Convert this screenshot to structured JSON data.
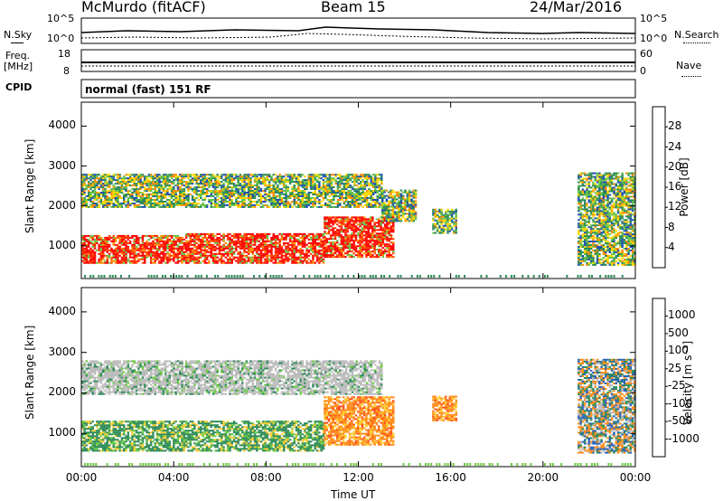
{
  "header": {
    "station": "McMurdo (fitACF)",
    "beam": "Beam 15",
    "date": "24/Mar/2016"
  },
  "strip_labels": {
    "nsky": "N.Sky",
    "nsearch": "N.Search",
    "freq": "Freq.",
    "freq_unit": "[MHz]",
    "nave": "Nave",
    "cpid": "CPID",
    "cpid_value": "normal (fast) 151 RF"
  },
  "strip_ticks": {
    "noise_left": [
      "10^5",
      "10^0"
    ],
    "noise_right": [
      "10^5",
      "10^0"
    ],
    "freq_left": [
      "18",
      "8"
    ],
    "nave_right": [
      "60",
      "0"
    ]
  },
  "chart_data": [
    {
      "type": "heatmap",
      "title": "",
      "xlabel": "",
      "ylabel": "Slant Range [km]",
      "x_ticks": [
        "00:00",
        "04:00",
        "08:00",
        "12:00",
        "16:00",
        "20:00",
        "00:00"
      ],
      "y_ticks": [
        "1000",
        "2000",
        "3000",
        "4000"
      ],
      "ylim": [
        180,
        4600
      ],
      "xlim_hours": [
        0,
        24
      ],
      "colorbar": {
        "label": "Power [dB]",
        "ticks": [
          "4",
          "8",
          "12",
          "16",
          "20",
          "24",
          "28"
        ],
        "colors": [
          "#0000ff",
          "#1f4fb4",
          "#2e8b57",
          "#66c24a",
          "#ffd700",
          "#ff8c00",
          "#ff4500",
          "#ff0000"
        ]
      },
      "regions": [
        {
          "t": [
            0.0,
            4.5
          ],
          "r": [
            550,
            1250
          ],
          "level": "high"
        },
        {
          "t": [
            4.5,
            10.5
          ],
          "r": [
            550,
            1300
          ],
          "level": "high"
        },
        {
          "t": [
            10.5,
            13.5
          ],
          "r": [
            700,
            1700
          ],
          "level": "high"
        },
        {
          "t": [
            0.0,
            13.0
          ],
          "r": [
            1950,
            2800
          ],
          "level": "medium"
        },
        {
          "t": [
            13.0,
            14.5
          ],
          "r": [
            1600,
            2400
          ],
          "level": "medium"
        },
        {
          "t": [
            15.2,
            16.2
          ],
          "r": [
            1300,
            1900
          ],
          "level": "medium"
        },
        {
          "t": [
            21.5,
            24.0
          ],
          "r": [
            500,
            2800
          ],
          "level": "medium"
        }
      ]
    },
    {
      "type": "heatmap",
      "title": "",
      "xlabel": "Time UT",
      "ylabel": "Slant Range [km]",
      "x_ticks": [
        "00:00",
        "04:00",
        "08:00",
        "12:00",
        "16:00",
        "20:00",
        "00:00"
      ],
      "y_ticks": [
        "1000",
        "2000",
        "3000",
        "4000"
      ],
      "ylim": [
        180,
        4600
      ],
      "xlim_hours": [
        0,
        24
      ],
      "colorbar": {
        "label": "Velocity [m s⁻¹]",
        "ticks": [
          "1000",
          "500",
          "100",
          "25",
          "-25",
          "-100",
          "-500",
          "-1000"
        ],
        "colors": [
          "#0a1e8c",
          "#2a64b4",
          "#2e8b57",
          "#6acb3f",
          "#bcbcbc",
          "#ffcc33",
          "#ff8c1a",
          "#ff4d1a",
          "#ff0000"
        ]
      },
      "regions": [
        {
          "t": [
            0.0,
            13.0
          ],
          "r": [
            1950,
            2800
          ],
          "level": "ground"
        },
        {
          "t": [
            0.0,
            10.5
          ],
          "r": [
            550,
            1300
          ],
          "level": "positive"
        },
        {
          "t": [
            10.5,
            13.5
          ],
          "r": [
            700,
            1900
          ],
          "level": "negative"
        },
        {
          "t": [
            15.2,
            16.2
          ],
          "r": [
            1300,
            1900
          ],
          "level": "negative"
        },
        {
          "t": [
            21.5,
            24.0
          ],
          "r": [
            500,
            2800
          ],
          "level": "mixed"
        }
      ]
    }
  ]
}
